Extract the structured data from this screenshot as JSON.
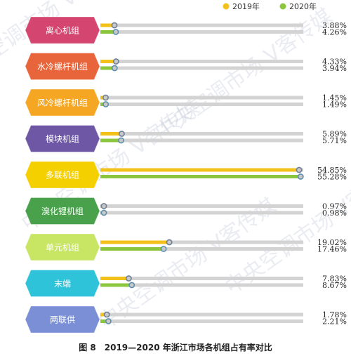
{
  "chart_data": {
    "type": "bar",
    "orientation": "horizontal",
    "title": "图 8　2019—2020 年浙江市场各机组占有率对比",
    "categories": [
      "离心机组",
      "水冷螺杆机组",
      "风冷螺杆机组",
      "模块机组",
      "多联机组",
      "溴化锂机组",
      "单元机组",
      "末端",
      "两联供"
    ],
    "category_colors": [
      "#d4456f",
      "#e8643a",
      "#f5a623",
      "#6e58a6",
      "#f5d000",
      "#4aa14c",
      "#c8e564",
      "#2ec3d9",
      "#7b8fd6"
    ],
    "series": [
      {
        "name": "2019年",
        "color": "#f2c21b",
        "values": [
          3.88,
          4.33,
          1.45,
          5.89,
          54.85,
          0.97,
          19.02,
          7.83,
          1.78
        ],
        "labels": [
          "3.88%",
          "4.33%",
          "1.45%",
          "5.89%",
          "54.85%",
          "0.97%",
          "19.02%",
          "7.83%",
          "1.78%"
        ]
      },
      {
        "name": "2020年",
        "color": "#8cc63f",
        "values": [
          4.26,
          3.94,
          1.49,
          5.71,
          55.28,
          0.98,
          17.46,
          8.67,
          2.21
        ],
        "labels": [
          "4.26%",
          "3.94%",
          "1.49%",
          "5.71%",
          "55.28%",
          "0.98%",
          "17.46%",
          "8.67%",
          "2.21%"
        ]
      }
    ],
    "xlim": [
      0,
      56
    ],
    "legend_position": "top-right",
    "grid": false
  },
  "watermark": "中央空调市场  V客传媒"
}
